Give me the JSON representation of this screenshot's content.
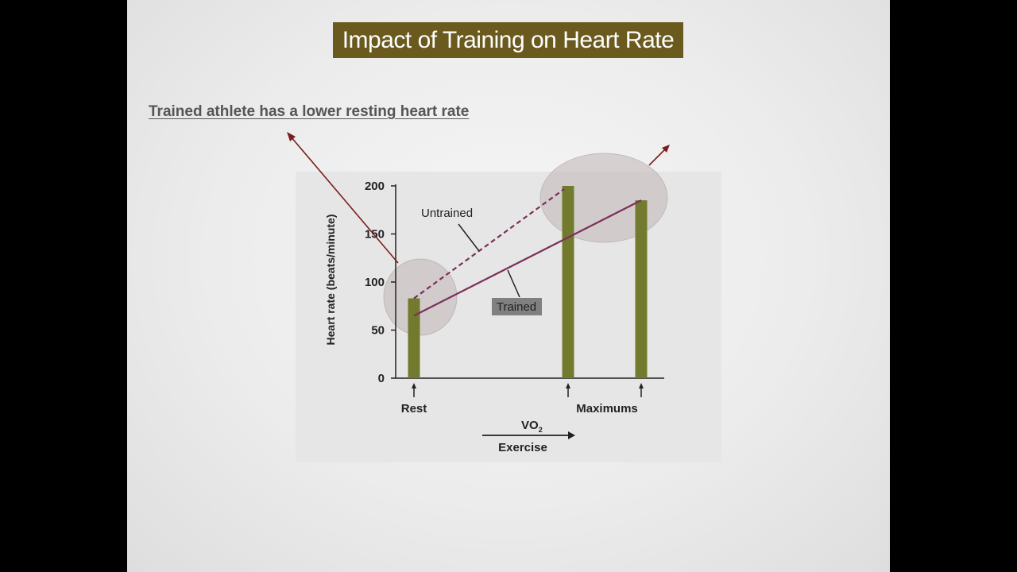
{
  "slide": {
    "title": "Impact of Training on Heart Rate",
    "subtitle": "Trained athlete has a lower resting heart rate"
  },
  "colors": {
    "title_bg": "#6b5a1e",
    "bar": "#727b2d",
    "trained_line": "#7b2f5a",
    "untrained_line": "#7b2f5a",
    "arrow": "#7a1f1f",
    "highlight": "#bfb4b4"
  },
  "chart_data": {
    "type": "bar",
    "ylabel": "Heart rate (beats/minute)",
    "y_ticks": [
      0,
      50,
      100,
      150,
      200
    ],
    "ylim": [
      0,
      200
    ],
    "x_category_labels": [
      "Rest",
      "Maximums"
    ],
    "xlabel_top": "VO",
    "xlabel_sub": "2",
    "xlabel_bottom": "Exercise",
    "bars": [
      {
        "position": "Rest",
        "value": 83
      },
      {
        "position": "Maximum (untrained)",
        "value": 200
      },
      {
        "position": "Maximum (trained)",
        "value": 185
      }
    ],
    "series": [
      {
        "name": "Untrained",
        "style": "dashed",
        "x": [
          "Rest",
          "Maximum (untrained)"
        ],
        "values": [
          83,
          200
        ]
      },
      {
        "name": "Trained",
        "style": "solid",
        "x": [
          "Rest",
          "Maximum (trained)"
        ],
        "values": [
          65,
          185
        ]
      }
    ],
    "grid": false
  }
}
